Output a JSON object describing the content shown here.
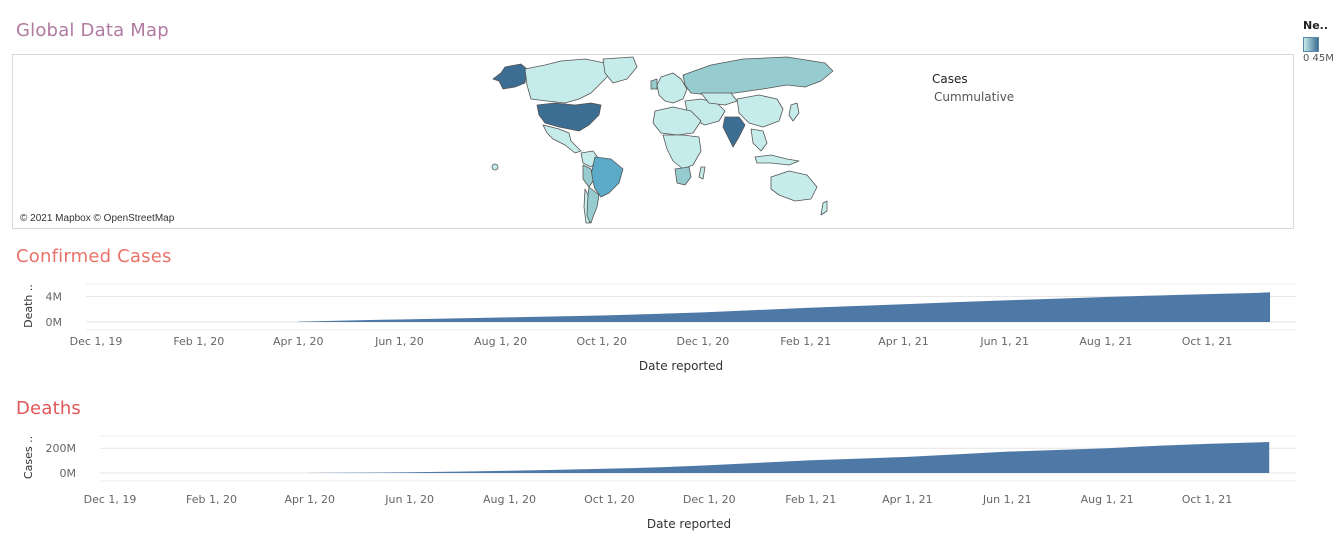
{
  "map_section": {
    "title": "Global Data Map",
    "attribution": "© 2021 Mapbox © OpenStreetMap",
    "legend_title": "Cases",
    "legend_subtitle": "Cummulative",
    "side_legend_title": "Ne..",
    "side_legend_values": "0 45M",
    "colors": {
      "low": "#c5ecea",
      "mid": "#96cbd0",
      "high": "#5aaac8",
      "top": "#3c6d93",
      "border": "#555555"
    }
  },
  "confirmed_section": {
    "title": "Confirmed Cases"
  },
  "deaths_section": {
    "title": "Deaths"
  },
  "chart_data": [
    {
      "type": "area",
      "title": "Confirmed Cases",
      "ylabel": "Death ..",
      "xlabel": "Date reported",
      "x_ticks": [
        "Dec 1, 19",
        "Feb 1, 20",
        "Apr 1, 20",
        "Jun 1, 20",
        "Aug 1, 20",
        "Oct 1, 20",
        "Dec 1, 20",
        "Feb 1, 21",
        "Apr 1, 21",
        "Jun 1, 21",
        "Aug 1, 21",
        "Oct 1, 21"
      ],
      "y_ticks": [
        "0M",
        "4M"
      ],
      "ylim": [
        0,
        5000000
      ],
      "color": "#4e79a7",
      "grid": true,
      "x": [
        "2020-04-01",
        "2020-05-01",
        "2020-06-01",
        "2020-07-01",
        "2020-08-01",
        "2020-09-01",
        "2020-10-01",
        "2020-11-01",
        "2020-12-01",
        "2021-01-01",
        "2021-02-01",
        "2021-03-01",
        "2021-04-01",
        "2021-05-01",
        "2021-06-01",
        "2021-07-01",
        "2021-08-01",
        "2021-09-01",
        "2021-10-01",
        "2021-11-01",
        "2021-11-08"
      ],
      "values": [
        60000,
        240000,
        400000,
        540000,
        700000,
        860000,
        1020000,
        1250000,
        1500000,
        1850000,
        2200000,
        2480000,
        2780000,
        3080000,
        3380000,
        3640000,
        3900000,
        4150000,
        4360000,
        4560000,
        4640000
      ]
    },
    {
      "type": "area",
      "title": "Deaths",
      "ylabel": "Cases ..",
      "xlabel": "Date reported",
      "x_ticks": [
        "Dec 1, 19",
        "Feb 1, 20",
        "Apr 1, 20",
        "Jun 1, 20",
        "Aug 1, 20",
        "Oct 1, 20",
        "Dec 1, 20",
        "Feb 1, 21",
        "Apr 1, 21",
        "Jun 1, 21",
        "Aug 1, 21",
        "Oct 1, 21"
      ],
      "y_ticks": [
        "0M",
        "200M"
      ],
      "ylim": [
        0,
        250000000
      ],
      "color": "#4e79a7",
      "grid": true,
      "x": [
        "2020-04-01",
        "2020-05-01",
        "2020-06-01",
        "2020-07-01",
        "2020-08-01",
        "2020-09-01",
        "2020-10-01",
        "2020-11-01",
        "2020-12-01",
        "2021-01-01",
        "2021-02-01",
        "2021-03-01",
        "2021-04-01",
        "2021-05-01",
        "2021-06-01",
        "2021-07-01",
        "2021-08-01",
        "2021-09-01",
        "2021-10-01",
        "2021-11-01",
        "2021-11-08"
      ],
      "values": [
        1000000,
        3000000,
        6000000,
        11000000,
        18000000,
        26000000,
        35000000,
        46000000,
        62000000,
        83000000,
        103000000,
        115000000,
        130000000,
        150000000,
        172000000,
        185000000,
        200000000,
        220000000,
        235000000,
        247000000,
        250000000
      ]
    }
  ]
}
